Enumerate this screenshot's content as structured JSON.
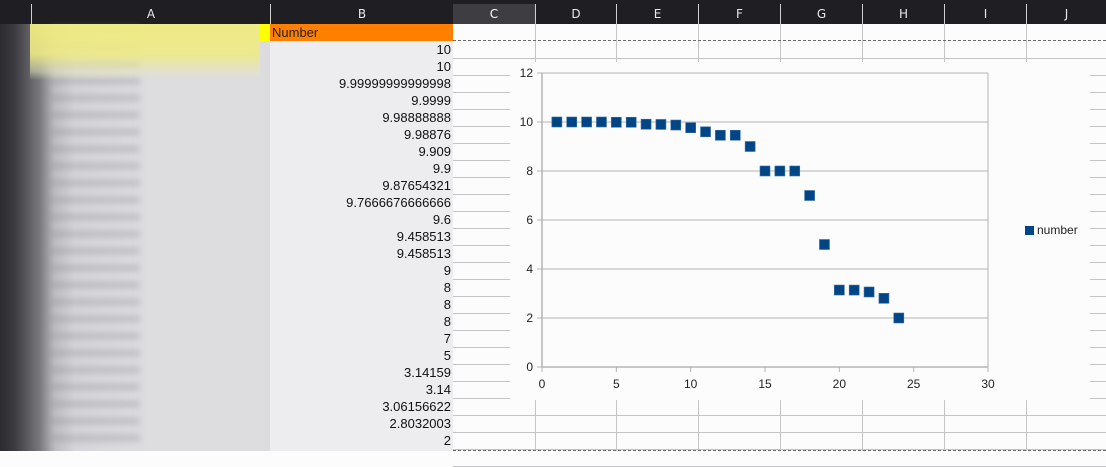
{
  "column_headers": [
    "A",
    "B",
    "C",
    "D",
    "E",
    "F",
    "G",
    "H",
    "I",
    "J"
  ],
  "selected_column": "C",
  "column_b": {
    "header": "Number",
    "values": [
      "10",
      "10",
      "9.99999999999998",
      "9.9999",
      "9.98888888",
      "9.98876",
      "9.909",
      "9.9",
      "9.87654321",
      "9.7666676666666",
      "9.6",
      "9.458513",
      "9.458513",
      "9",
      "8",
      "8",
      "8",
      "7",
      "5",
      "3.14159",
      "3.14",
      "3.06156622",
      "2.8032003",
      "2"
    ]
  },
  "colors": {
    "header_bg": "#1f1f23",
    "number_header_bg": "#ff8000",
    "highlight_yellow": "#ffff00",
    "series_color": "#004586"
  },
  "chart_data": {
    "type": "scatter",
    "title": "",
    "xlabel": "",
    "ylabel": "",
    "xlim": [
      0,
      30
    ],
    "ylim": [
      0,
      12
    ],
    "x_ticks": [
      0,
      5,
      10,
      15,
      20,
      25,
      30
    ],
    "y_ticks": [
      0,
      2,
      4,
      6,
      8,
      10,
      12
    ],
    "grid": "horizontal",
    "legend_position": "right",
    "series": [
      {
        "name": "number",
        "color": "#004586",
        "marker": "square",
        "x": [
          1,
          2,
          3,
          4,
          5,
          6,
          7,
          8,
          9,
          10,
          11,
          12,
          13,
          14,
          15,
          16,
          17,
          18,
          19,
          20,
          21,
          22,
          23,
          24
        ],
        "y": [
          10,
          10,
          9.99999999999998,
          9.9999,
          9.98888888,
          9.98876,
          9.909,
          9.9,
          9.87654321,
          9.7666676666666,
          9.6,
          9.458513,
          9.458513,
          9,
          8,
          8,
          8,
          7,
          5,
          3.14159,
          3.14,
          3.06156622,
          2.8032003,
          2
        ]
      }
    ]
  }
}
